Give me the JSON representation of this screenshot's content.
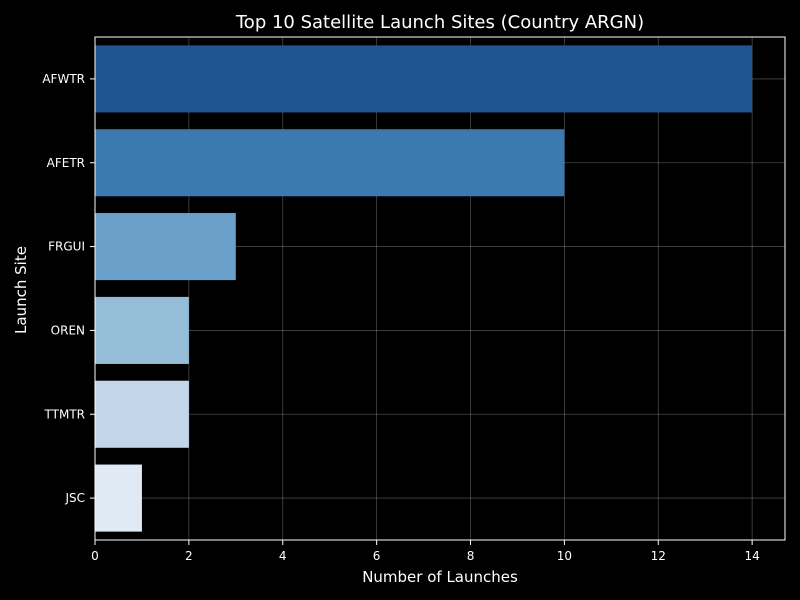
{
  "chart_data": {
    "type": "bar",
    "orientation": "horizontal",
    "title": "Top 10 Satellite Launch Sites (Country ARGN)",
    "xlabel": "Number of Launches",
    "ylabel": "Launch Site",
    "categories": [
      "AFWTR",
      "AFETR",
      "FRGUI",
      "OREN",
      "TTMTR",
      "JSC"
    ],
    "values": [
      14,
      10,
      3,
      2,
      2,
      1
    ],
    "bar_colors": [
      "#1f5591",
      "#3a7ab0",
      "#6aa0c9",
      "#95bdd8",
      "#c3d7ea",
      "#e0eaf5"
    ],
    "xlim": [
      0,
      14.7
    ],
    "xticks": [
      0,
      2,
      4,
      6,
      8,
      10,
      12,
      14
    ],
    "grid": true,
    "background": "#000000",
    "text_color": "#ffffff"
  }
}
